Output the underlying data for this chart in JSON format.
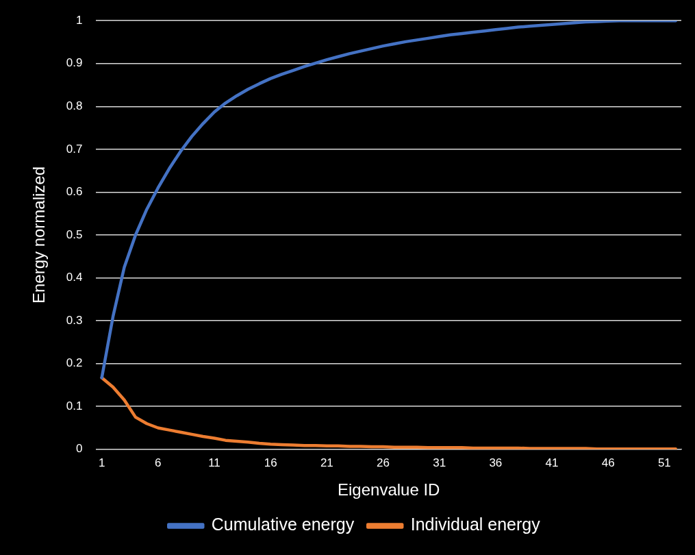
{
  "chart_data": {
    "type": "line",
    "xlabel": "Eigenvalue ID",
    "ylabel": "Energy normalized",
    "x": [
      1,
      2,
      3,
      4,
      5,
      6,
      7,
      8,
      9,
      10,
      11,
      12,
      13,
      14,
      15,
      16,
      17,
      18,
      19,
      20,
      21,
      22,
      23,
      24,
      25,
      26,
      27,
      28,
      29,
      30,
      31,
      32,
      33,
      34,
      35,
      36,
      37,
      38,
      39,
      40,
      41,
      42,
      43,
      44,
      45,
      46,
      47,
      48,
      49,
      50,
      51,
      52
    ],
    "xlim": [
      0.5,
      52.5
    ],
    "xticks": [
      1,
      6,
      11,
      16,
      21,
      26,
      31,
      36,
      41,
      46,
      51
    ],
    "series": [
      {
        "name": "Cumulative energy",
        "color": "#4472c4",
        "values": [
          0.167,
          0.31,
          0.425,
          0.5,
          0.56,
          0.61,
          0.655,
          0.695,
          0.73,
          0.76,
          0.787,
          0.808,
          0.825,
          0.84,
          0.853,
          0.865,
          0.875,
          0.884,
          0.893,
          0.901,
          0.909,
          0.916,
          0.923,
          0.929,
          0.935,
          0.941,
          0.946,
          0.951,
          0.955,
          0.959,
          0.963,
          0.967,
          0.97,
          0.973,
          0.976,
          0.979,
          0.982,
          0.985,
          0.987,
          0.989,
          0.991,
          0.993,
          0.995,
          0.997,
          0.998,
          0.999,
          1,
          1,
          1,
          1,
          1,
          1
        ]
      },
      {
        "name": "Individual energy",
        "color": "#ed7d31",
        "values": [
          0.167,
          0.145,
          0.115,
          0.075,
          0.06,
          0.05,
          0.045,
          0.04,
          0.035,
          0.03,
          0.026,
          0.021,
          0.019,
          0.017,
          0.014,
          0.012,
          0.011,
          0.01,
          0.009,
          0.009,
          0.008,
          0.008,
          0.007,
          0.007,
          0.006,
          0.006,
          0.005,
          0.005,
          0.005,
          0.004,
          0.004,
          0.004,
          0.004,
          0.003,
          0.003,
          0.003,
          0.003,
          0.003,
          0.002,
          0.002,
          0.002,
          0.002,
          0.002,
          0.002,
          0.001,
          0.001,
          0.001,
          0.001,
          0.001,
          0.001,
          0.001,
          0.001
        ]
      }
    ],
    "ylim": [
      0,
      1
    ],
    "yticks": [
      0,
      0.1,
      0.2,
      0.3,
      0.4,
      0.5,
      0.6,
      0.7,
      0.8,
      0.9,
      1
    ],
    "grid": "y",
    "legend": "bottom",
    "marker": "none",
    "line_style": "solid"
  }
}
